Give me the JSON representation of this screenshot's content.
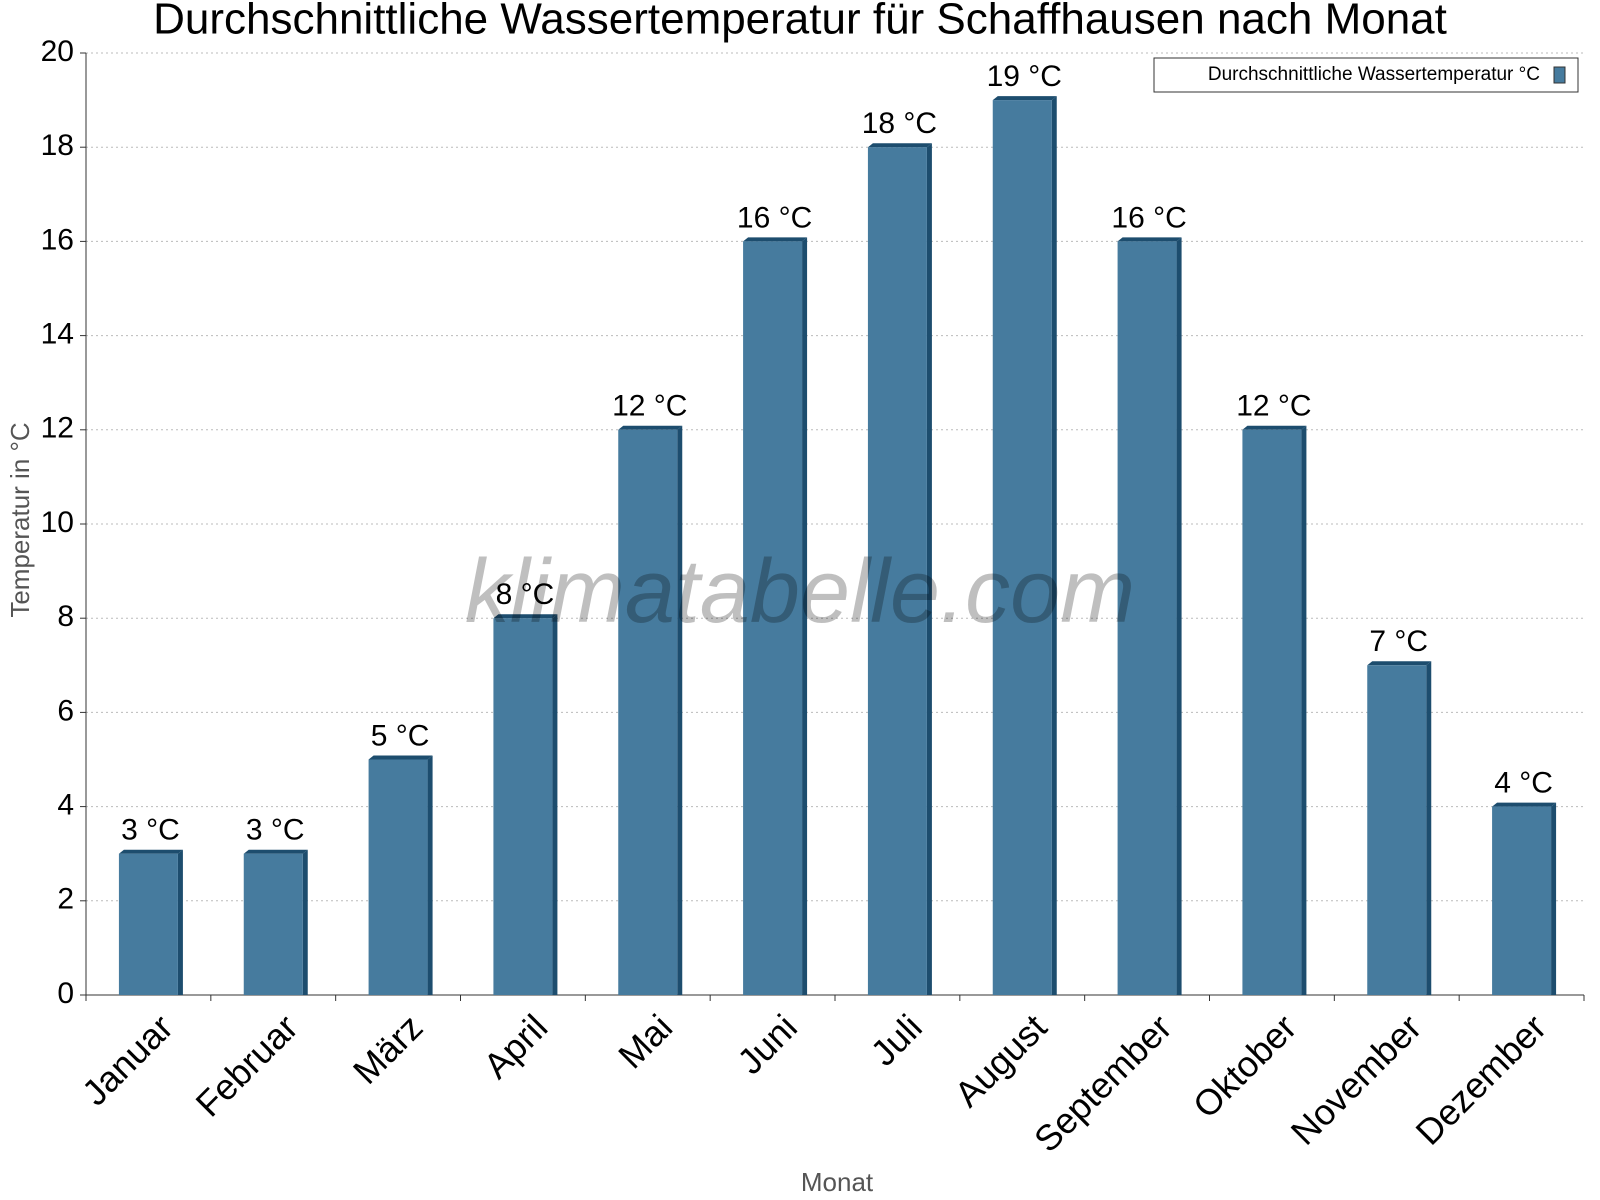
{
  "chart_data": {
    "type": "bar",
    "title": "Durchschnittliche Wassertemperatur für Schaffhausen nach Monat",
    "x_label": "Monat",
    "y_label": "Temperatur in °C",
    "watermark": "klimatabelle.com",
    "categories": [
      "Januar",
      "Februar",
      "März",
      "April",
      "Mai",
      "Juni",
      "Juli",
      "August",
      "September",
      "Oktober",
      "November",
      "Dezember"
    ],
    "series": [
      {
        "name": "Durchschnittliche Wassertemperatur °C",
        "color": "#467b9e",
        "values": [
          3,
          3,
          5,
          8,
          12,
          16,
          18,
          19,
          16,
          12,
          7,
          4
        ],
        "value_labels": [
          "3 °C",
          "3 °C",
          "5 °C",
          "8 °C",
          "12 °C",
          "16 °C",
          "18 °C",
          "19 °C",
          "16 °C",
          "12 °C",
          "7 °C",
          "4 °C"
        ]
      }
    ],
    "ylim": [
      0,
      20
    ],
    "yticks": [
      0,
      2,
      4,
      6,
      8,
      10,
      12,
      14,
      16,
      18,
      20
    ],
    "grid": true,
    "legend": "upper right"
  }
}
